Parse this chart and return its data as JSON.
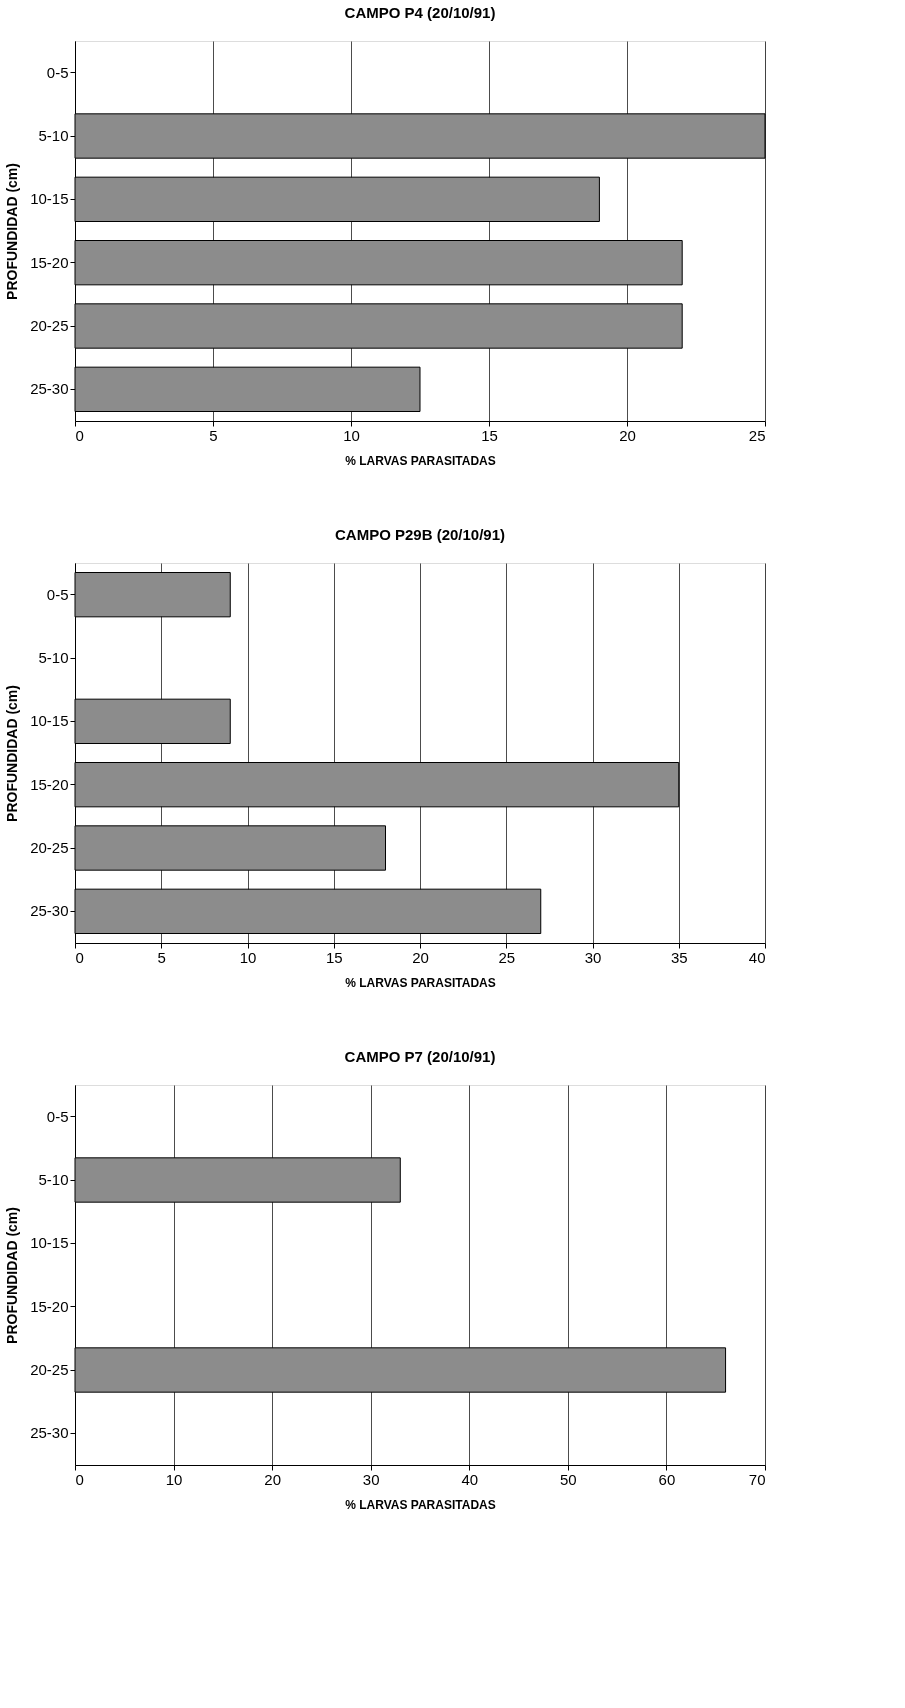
{
  "chart_data": [
    {
      "type": "bar",
      "orientation": "horizontal",
      "title": "CAMPO P4 (20/10/91)",
      "xlabel": "% LARVAS PARASITADAS",
      "ylabel": "PROFUNDIDAD (cm)",
      "categories": [
        "0-5",
        "5-10",
        "10-15",
        "15-20",
        "20-25",
        "25-30"
      ],
      "values": [
        0,
        25,
        19,
        22,
        22,
        12.5
      ],
      "color": "#8c8c8c",
      "xlim": [
        0,
        25
      ],
      "xticks": [
        0,
        5,
        10,
        15,
        20,
        25
      ],
      "grid": "x"
    },
    {
      "type": "bar",
      "orientation": "horizontal",
      "title": "CAMPO P29B (20/10/91)",
      "xlabel": "% LARVAS PARASITADAS",
      "ylabel": "PROFUNDIDAD (cm)",
      "categories": [
        "0-5",
        "5-10",
        "10-15",
        "15-20",
        "20-25",
        "25-30"
      ],
      "values": [
        9,
        0,
        9,
        35,
        18,
        27
      ],
      "color": "#8c8c8c",
      "xlim": [
        0,
        40
      ],
      "xticks": [
        0,
        5,
        10,
        15,
        20,
        25,
        30,
        35,
        40
      ],
      "grid": "x"
    },
    {
      "type": "bar",
      "orientation": "horizontal",
      "title": "CAMPO P7 (20/10/91)",
      "xlabel": "% LARVAS PARASITADAS",
      "ylabel": "PROFUNDIDAD (cm)",
      "categories": [
        "0-5",
        "5-10",
        "10-15",
        "15-20",
        "20-25",
        "25-30"
      ],
      "values": [
        0,
        33,
        0,
        0,
        66,
        0
      ],
      "color": "#8c8c8c",
      "xlim": [
        0,
        70
      ],
      "xticks": [
        0,
        10,
        20,
        30,
        40,
        50,
        60,
        70
      ],
      "grid": "x"
    }
  ]
}
